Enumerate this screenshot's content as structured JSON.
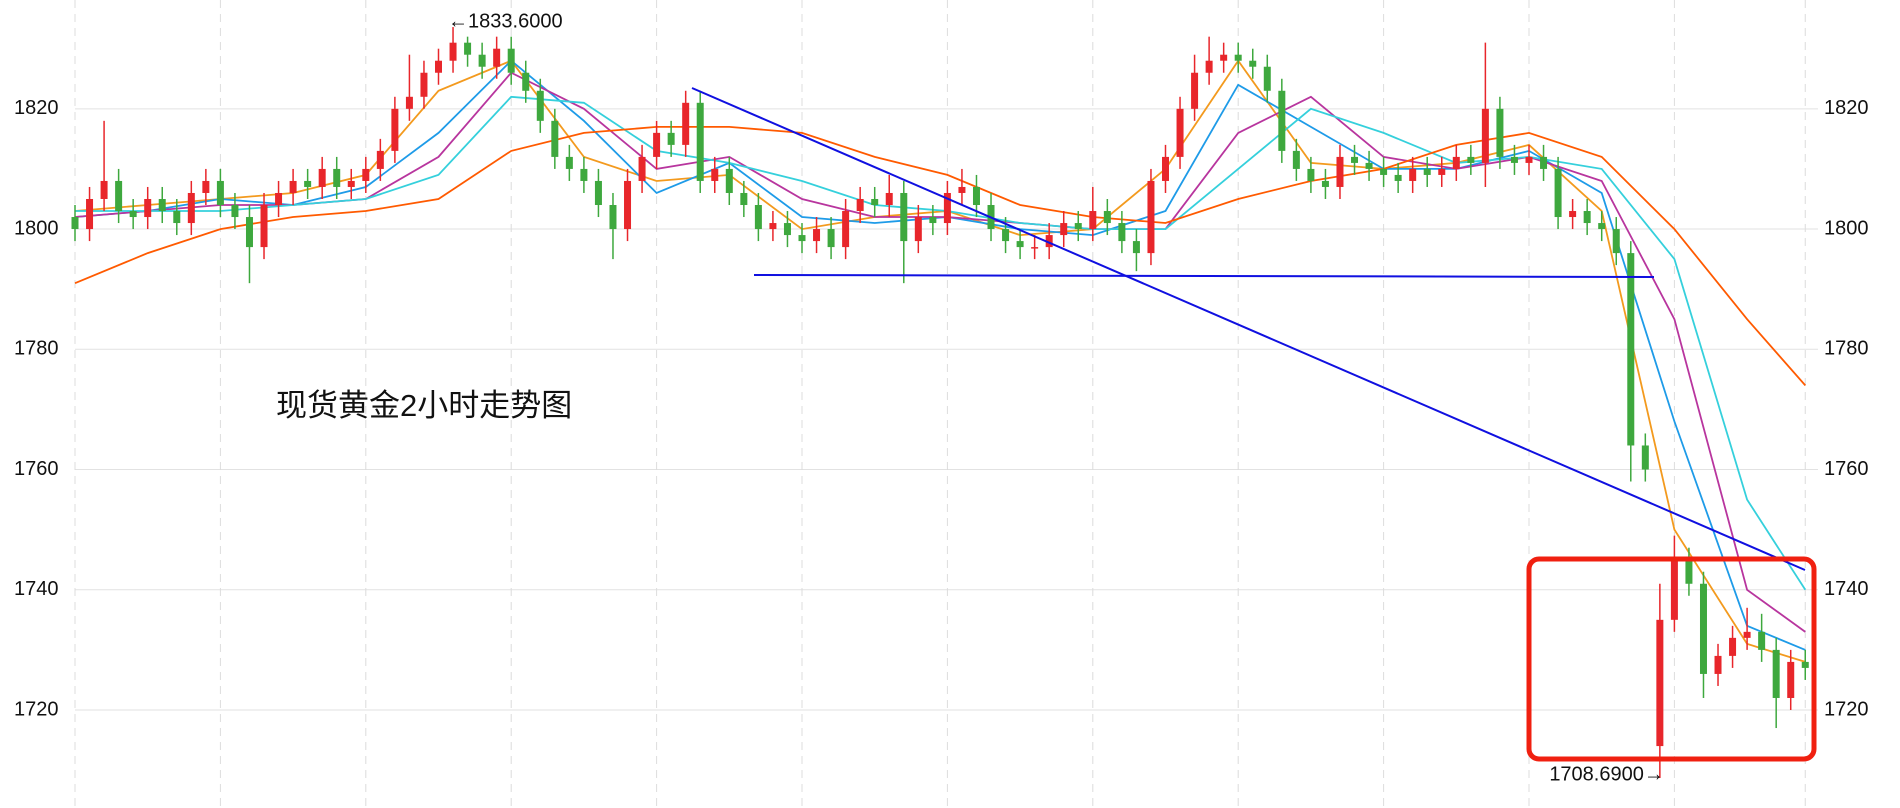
{
  "chart_data": {
    "type": "candlestick",
    "title": "现货黄金2小时走势图",
    "title_color": "#ff2a10",
    "up_color": "#e8262b",
    "down_color": "#3ea83e",
    "ylim": [
      1703.7,
      1838.1
    ],
    "yticks": [
      1720,
      1740,
      1760,
      1780,
      1800,
      1820
    ],
    "xgrid": [
      0,
      10,
      20,
      30,
      40,
      50,
      60,
      70,
      80,
      90,
      100,
      110,
      119
    ],
    "grid": true,
    "open": [
      1802,
      1800,
      1805,
      1808,
      1803,
      1802,
      1805,
      1803,
      1801,
      1806,
      1808,
      1804,
      1802,
      1797,
      1804,
      1806,
      1808,
      1807,
      1810,
      1807,
      1808,
      1810,
      1813,
      1820,
      1822,
      1826,
      1828,
      1831,
      1829,
      1827,
      1830,
      1826,
      1823,
      1818,
      1812,
      1810,
      1808,
      1804,
      1800,
      1808,
      1812,
      1816,
      1814,
      1821,
      1808,
      1810,
      1806,
      1804,
      1800,
      1801,
      1799,
      1798,
      1800,
      1797,
      1803,
      1805,
      1804,
      1806,
      1798,
      1802,
      1801,
      1806,
      1807,
      1804,
      1800,
      1798,
      1797,
      1797,
      1799,
      1801,
      1800,
      1803,
      1801,
      1798,
      1796,
      1808,
      1812,
      1820,
      1826,
      1828,
      1829,
      1828,
      1827,
      1823,
      1813,
      1810,
      1808,
      1807,
      1812,
      1811,
      1810,
      1809,
      1808,
      1810,
      1809,
      1810,
      1812,
      1811,
      1820,
      1812,
      1811,
      1812,
      1810,
      1802,
      1803,
      1801,
      1800,
      1796,
      1764,
      1714,
      1735,
      1745,
      1741,
      1726,
      1729,
      1732,
      1733,
      1730,
      1722,
      1728
    ],
    "high": [
      1804,
      1807,
      1818,
      1810,
      1805,
      1807,
      1807,
      1805,
      1808,
      1810,
      1810,
      1806,
      1804,
      1806,
      1808,
      1810,
      1810,
      1812,
      1812,
      1810,
      1812,
      1815,
      1822,
      1829,
      1828,
      1830,
      1833.6,
      1832,
      1831,
      1832,
      1832,
      1828,
      1825,
      1820,
      1814,
      1812,
      1810,
      1806,
      1810,
      1814,
      1818,
      1818,
      1823,
      1823,
      1812,
      1812,
      1808,
      1806,
      1803,
      1803,
      1801,
      1802,
      1802,
      1805,
      1807,
      1807,
      1809,
      1808,
      1804,
      1804,
      1808,
      1810,
      1809,
      1806,
      1802,
      1800,
      1799,
      1801,
      1803,
      1803,
      1807,
      1805,
      1803,
      1800,
      1810,
      1814,
      1822,
      1829,
      1832,
      1831,
      1831,
      1830,
      1829,
      1825,
      1815,
      1812,
      1810,
      1814,
      1814,
      1813,
      1812,
      1811,
      1812,
      1812,
      1812,
      1814,
      1814,
      1831,
      1822,
      1814,
      1814,
      1814,
      1812,
      1805,
      1805,
      1803,
      1802,
      1798,
      1766,
      1741,
      1749,
      1747,
      1743,
      1731,
      1734,
      1737,
      1736,
      1732,
      1730,
      1730
    ],
    "low": [
      1798,
      1798,
      1803,
      1801,
      1800,
      1800,
      1801,
      1799,
      1799,
      1804,
      1802,
      1800,
      1791,
      1795,
      1802,
      1804,
      1805,
      1805,
      1805,
      1805,
      1806,
      1808,
      1811,
      1818,
      1820,
      1824,
      1826,
      1827,
      1825,
      1825,
      1824,
      1821,
      1816,
      1810,
      1808,
      1806,
      1802,
      1795,
      1798,
      1806,
      1810,
      1812,
      1812,
      1806,
      1806,
      1804,
      1802,
      1798,
      1798,
      1797,
      1796,
      1796,
      1795,
      1795,
      1801,
      1802,
      1802,
      1791,
      1796,
      1799,
      1799,
      1804,
      1802,
      1798,
      1796,
      1795,
      1795,
      1795,
      1797,
      1798,
      1798,
      1799,
      1796,
      1793,
      1794,
      1806,
      1810,
      1818,
      1824,
      1826,
      1826,
      1825,
      1821,
      1811,
      1808,
      1806,
      1805,
      1805,
      1809,
      1808,
      1807,
      1806,
      1806,
      1807,
      1807,
      1808,
      1809,
      1807,
      1810,
      1809,
      1809,
      1808,
      1800,
      1800,
      1799,
      1798,
      1794,
      1758,
      1758,
      1708.69,
      1733,
      1739,
      1722,
      1724,
      1727,
      1730,
      1728,
      1717,
      1720,
      1725
    ],
    "close": [
      1800,
      1805,
      1808,
      1803,
      1802,
      1805,
      1803,
      1801,
      1806,
      1808,
      1804,
      1802,
      1797,
      1804,
      1806,
      1808,
      1807,
      1810,
      1807,
      1808,
      1810,
      1813,
      1820,
      1822,
      1826,
      1828,
      1831,
      1829,
      1827,
      1830,
      1826,
      1823,
      1818,
      1812,
      1810,
      1808,
      1804,
      1800,
      1808,
      1812,
      1816,
      1814,
      1821,
      1808,
      1810,
      1806,
      1804,
      1800,
      1801,
      1799,
      1798,
      1800,
      1797,
      1803,
      1805,
      1804,
      1806,
      1798,
      1802,
      1801,
      1806,
      1807,
      1804,
      1800,
      1798,
      1797,
      1797,
      1799,
      1801,
      1800,
      1803,
      1801,
      1798,
      1796,
      1808,
      1812,
      1820,
      1826,
      1828,
      1829,
      1828,
      1827,
      1823,
      1813,
      1810,
      1808,
      1807,
      1812,
      1811,
      1810,
      1809,
      1808,
      1810,
      1809,
      1810,
      1812,
      1811,
      1820,
      1812,
      1811,
      1812,
      1810,
      1802,
      1803,
      1801,
      1800,
      1796,
      1764,
      1760,
      1735,
      1745,
      1741,
      1726,
      1729,
      1732,
      1733,
      1730,
      1722,
      1728,
      1727
    ],
    "series": [
      {
        "color": "#f39a1e",
        "x": [
          0,
          5,
          10,
          15,
          20,
          25,
          30,
          35,
          40,
          45,
          50,
          55,
          60,
          65,
          70,
          75,
          80,
          85,
          90,
          95,
          100,
          105,
          110,
          115,
          119
        ],
        "values": [
          1803,
          1804,
          1805,
          1806,
          1809,
          1823,
          1828,
          1812,
          1808,
          1809,
          1800,
          1802,
          1803,
          1799,
          1800,
          1810,
          1828,
          1811,
          1810,
          1811,
          1814,
          1803,
          1750,
          1731,
          1728
        ]
      },
      {
        "color": "#1e9be8",
        "x": [
          0,
          5,
          10,
          15,
          20,
          25,
          30,
          35,
          40,
          45,
          50,
          55,
          60,
          65,
          70,
          75,
          80,
          85,
          90,
          95,
          100,
          105,
          110,
          115,
          119
        ],
        "values": [
          1802,
          1803,
          1805,
          1804,
          1807,
          1816,
          1828,
          1818,
          1806,
          1811,
          1802,
          1801,
          1802,
          1800,
          1799,
          1803,
          1824,
          1817,
          1810,
          1810,
          1813,
          1806,
          1768,
          1734,
          1730
        ]
      },
      {
        "color": "#b8359e",
        "x": [
          0,
          5,
          10,
          15,
          20,
          25,
          30,
          35,
          40,
          45,
          50,
          55,
          60,
          65,
          70,
          75,
          80,
          85,
          90,
          95,
          100,
          105,
          110,
          115,
          119
        ],
        "values": [
          1802,
          1803,
          1804,
          1804,
          1805,
          1812,
          1826,
          1820,
          1810,
          1812,
          1805,
          1802,
          1802,
          1801,
          1800,
          1800,
          1816,
          1822,
          1812,
          1810,
          1812,
          1808,
          1785,
          1740,
          1733
        ]
      },
      {
        "color": "#35d0dc",
        "x": [
          0,
          5,
          10,
          15,
          20,
          25,
          30,
          35,
          40,
          45,
          50,
          55,
          60,
          65,
          70,
          75,
          80,
          85,
          90,
          95,
          100,
          105,
          110,
          115,
          119
        ],
        "values": [
          1803,
          1803,
          1803,
          1804,
          1805,
          1809,
          1822,
          1821,
          1813,
          1811,
          1808,
          1804,
          1803,
          1801,
          1800,
          1800,
          1810,
          1820,
          1816,
          1811,
          1812,
          1810,
          1795,
          1755,
          1740
        ]
      },
      {
        "color": "#ff5a00",
        "x": [
          0,
          5,
          10,
          15,
          20,
          25,
          30,
          35,
          40,
          45,
          50,
          55,
          60,
          65,
          70,
          75,
          80,
          85,
          90,
          95,
          100,
          105,
          110,
          115,
          119
        ],
        "values": [
          1791,
          1796,
          1800,
          1802,
          1803,
          1805,
          1813,
          1816,
          1817,
          1817,
          1816,
          1812,
          1809,
          1804,
          1802,
          1801,
          1805,
          1808,
          1810,
          1814,
          1816,
          1812,
          1800,
          1785,
          1774
        ]
      }
    ],
    "annotations": [
      {
        "text": "←1833.6000",
        "x": 26,
        "y": 1833.6,
        "anchor": "start"
      },
      {
        "text": "1708.6900→",
        "x": 109,
        "y": 1708.69,
        "anchor": "end"
      }
    ]
  }
}
